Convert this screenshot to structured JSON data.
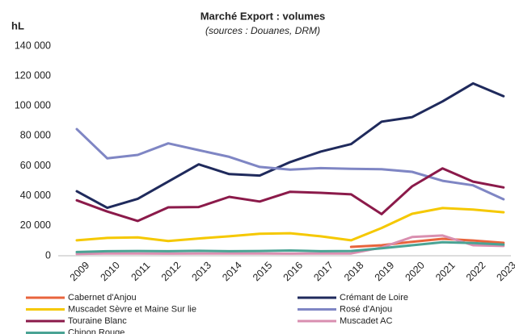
{
  "chart_data": {
    "type": "line",
    "title": "Marché Export : volumes",
    "subtitle": "(sources : Douanes, DRM)",
    "y_label": "hL",
    "categories": [
      "2009",
      "2010",
      "2011",
      "2012",
      "2013",
      "2014",
      "2015",
      "2016",
      "2017",
      "2018",
      "2019",
      "2020",
      "2021",
      "2022",
      "2023"
    ],
    "ylim": [
      0,
      140000
    ],
    "yticks": [
      0,
      {
        "value": 20000,
        "label": "20 000"
      },
      {
        "value": 40000,
        "label": "40 000"
      },
      {
        "value": 60000,
        "label": "60 000"
      },
      {
        "value": 80000,
        "label": "80 000"
      },
      {
        "value": 100000,
        "label": "100 000"
      },
      {
        "value": 120000,
        "label": "120 000"
      },
      {
        "value": 140000,
        "label": "140 000"
      }
    ],
    "grid": false,
    "series": [
      {
        "name": "Cabernet d'Anjou",
        "color": "#e8643c",
        "values": [
          null,
          null,
          null,
          null,
          null,
          null,
          null,
          null,
          null,
          5900,
          7000,
          9300,
          11300,
          10200,
          8600
        ]
      },
      {
        "name": "Crémant de Loire",
        "color": "#1f2a5c",
        "values": [
          43000,
          32000,
          38000,
          49500,
          61000,
          54500,
          53500,
          62500,
          69500,
          74500,
          89500,
          92500,
          103000,
          115000,
          106500
        ]
      },
      {
        "name": "Muscadet Sèvre et Maine Sur lie",
        "color": "#f5c800",
        "values": [
          10300,
          11900,
          12300,
          9800,
          11500,
          13000,
          14700,
          15000,
          13000,
          10300,
          18500,
          28000,
          31800,
          30800,
          29000
        ]
      },
      {
        "name": "Rosé d'Anjou",
        "color": "#7f86c4",
        "values": [
          84500,
          65000,
          67300,
          75000,
          70500,
          66000,
          59300,
          57500,
          58500,
          58000,
          57800,
          56000,
          50000,
          47000,
          37700
        ]
      },
      {
        "name": "Touraine Blanc",
        "color": "#8b1a4a",
        "values": [
          37000,
          29500,
          23200,
          32300,
          32500,
          39300,
          36200,
          42700,
          42000,
          41000,
          27800,
          46300,
          58300,
          49500,
          45600
        ]
      },
      {
        "name": "Muscadet AC",
        "color": "#d98fb0",
        "values": [
          1200,
          1500,
          1500,
          1400,
          1500,
          1500,
          1500,
          1400,
          1500,
          1500,
          5500,
          12500,
          13500,
          7000,
          6500
        ]
      },
      {
        "name": "Chinon Rouge",
        "color": "#4aa394",
        "values": [
          2500,
          3000,
          3200,
          3000,
          3300,
          3000,
          3200,
          3500,
          3000,
          3200,
          5000,
          7000,
          9000,
          8500,
          7500
        ]
      }
    ]
  }
}
